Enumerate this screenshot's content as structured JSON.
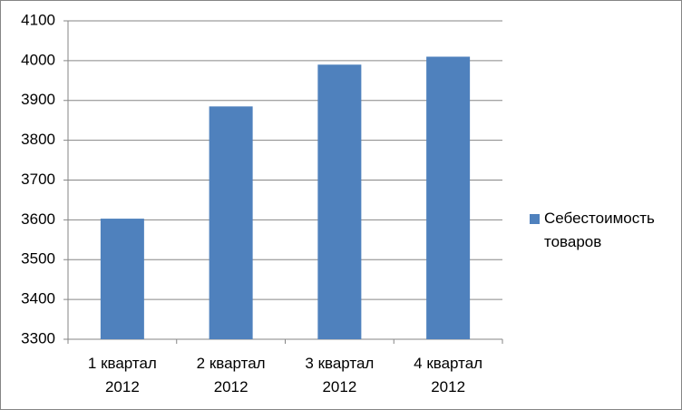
{
  "chart_data": {
    "type": "bar",
    "categories": [
      "1 квартал 2012",
      "2 квартал 2012",
      "3 квартал 2012",
      "4 квартал 2012"
    ],
    "series": [
      {
        "name": "Себестоимость товаров",
        "color": "#4f81bd",
        "values": [
          3603,
          3885,
          3990,
          4010
        ]
      }
    ],
    "ylim": [
      3300,
      4100
    ],
    "yticks": [
      3300,
      3400,
      3500,
      3600,
      3700,
      3800,
      3900,
      4000,
      4100
    ],
    "grid": true,
    "legend": "right"
  }
}
